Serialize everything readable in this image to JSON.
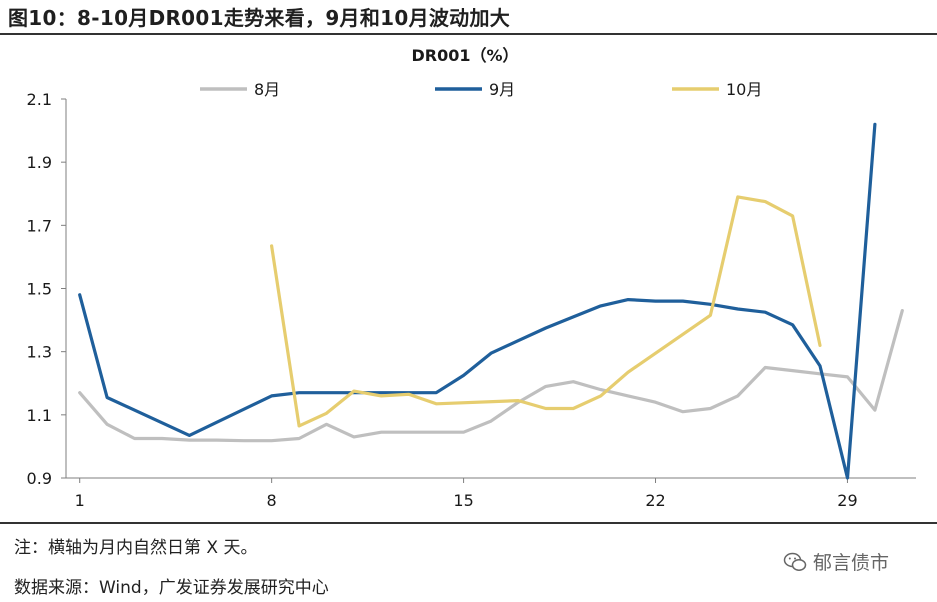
{
  "figure": {
    "title": "图10：8-10月DR001走势来看，9月和10月波动加大",
    "note": "注：横轴为月内自然日第 X 天。",
    "source": "数据来源：Wind，广发证券发展研究中心",
    "watermark": "郁言债市",
    "watermark_icon": "wechat-icon"
  },
  "chart_data": {
    "type": "line",
    "title": "DR001（%）",
    "xlabel": "",
    "ylabel": "",
    "xlim": [
      0.5,
      31.5
    ],
    "ylim": [
      0.9,
      2.1
    ],
    "x_ticks": [
      1,
      8,
      15,
      22,
      29
    ],
    "x_tick_labels": [
      "1",
      "8",
      "15",
      "22",
      "29"
    ],
    "y_ticks": [
      0.9,
      1.1,
      1.3,
      1.5,
      1.7,
      1.9,
      2.1
    ],
    "y_tick_labels": [
      "0.9",
      "1.1",
      "1.3",
      "1.5",
      "1.7",
      "1.9",
      "2.1"
    ],
    "grid": false,
    "legend_position": "top",
    "series": [
      {
        "name": "8月",
        "color": "#bfbfbf",
        "x": [
          1,
          2,
          3,
          4,
          5,
          6,
          7,
          8,
          9,
          10,
          11,
          12,
          13,
          14,
          15,
          16,
          17,
          18,
          19,
          20,
          21,
          22,
          23,
          24,
          25,
          26,
          27,
          28,
          29,
          30,
          31
        ],
        "values": [
          1.17,
          1.07,
          1.025,
          1.025,
          1.02,
          1.02,
          1.018,
          1.018,
          1.025,
          1.07,
          1.03,
          1.045,
          1.045,
          1.045,
          1.045,
          1.08,
          1.14,
          1.19,
          1.205,
          1.18,
          1.16,
          1.14,
          1.11,
          1.12,
          1.16,
          1.25,
          1.24,
          1.23,
          1.22,
          1.115,
          1.43
        ]
      },
      {
        "name": "9月",
        "color": "#1f5f9b",
        "x": [
          1,
          2,
          5,
          8,
          9,
          10,
          11,
          12,
          13,
          14,
          15,
          16,
          17,
          18,
          19,
          20,
          21,
          22,
          23,
          24,
          25,
          26,
          27,
          28,
          29,
          30
        ],
        "values": [
          1.48,
          1.155,
          1.035,
          1.16,
          1.17,
          1.17,
          1.17,
          1.17,
          1.17,
          1.17,
          1.225,
          1.295,
          1.335,
          1.375,
          1.41,
          1.445,
          1.465,
          1.46,
          1.46,
          1.45,
          1.435,
          1.425,
          1.385,
          1.255,
          0.9,
          2.02
        ]
      },
      {
        "name": "10月",
        "color": "#e6cd6f",
        "x": [
          8,
          9,
          10,
          11,
          12,
          13,
          14,
          17,
          18,
          19,
          20,
          21,
          24,
          25,
          26,
          27,
          28
        ],
        "values": [
          1.635,
          1.065,
          1.105,
          1.175,
          1.16,
          1.165,
          1.135,
          1.145,
          1.12,
          1.12,
          1.16,
          1.235,
          1.415,
          1.79,
          1.775,
          1.73,
          1.32
        ]
      }
    ]
  }
}
